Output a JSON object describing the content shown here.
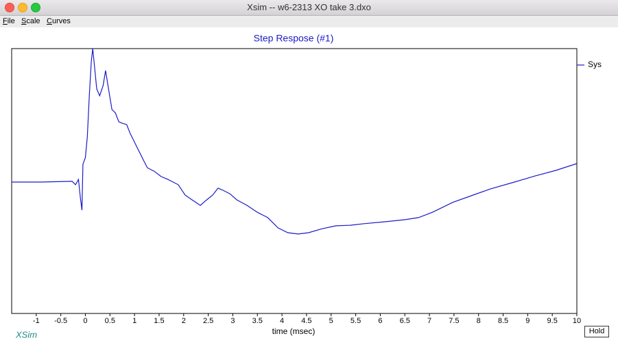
{
  "window": {
    "title": "Xsim -- w6-2313 XO take 3.dxo"
  },
  "menu": [
    "File",
    "Scale",
    "Curves"
  ],
  "logo": "XSim",
  "hold_button": "Hold",
  "chart_data": {
    "type": "line",
    "title": "Step Respose (#1)",
    "xlabel": "time (msec)",
    "xlim": [
      -1.5,
      10
    ],
    "ylim": [
      0,
      100
    ],
    "xticks": [
      -1,
      -0.5,
      0,
      0.5,
      1,
      1.5,
      2,
      2.5,
      3,
      3.5,
      4,
      4.5,
      5,
      5.5,
      6,
      6.5,
      7,
      7.5,
      8,
      8.5,
      9,
      9.5,
      10
    ],
    "legend": "top-right",
    "x": [
      -1.5,
      -0.9,
      -0.27,
      -0.2,
      -0.14,
      -0.1,
      -0.07,
      -0.05,
      0,
      0.04,
      0.08,
      0.12,
      0.15,
      0.19,
      0.23,
      0.29,
      0.36,
      0.41,
      0.47,
      0.54,
      0.61,
      0.68,
      0.75,
      0.84,
      0.91,
      0.98,
      1.05,
      1.12,
      1.19,
      1.26,
      1.4,
      1.54,
      1.68,
      1.89,
      2.03,
      2.17,
      2.34,
      2.45,
      2.59,
      2.7,
      2.8,
      2.94,
      3.08,
      3.29,
      3.5,
      3.71,
      3.92,
      4.12,
      4.33,
      4.54,
      4.82,
      5.1,
      5.39,
      5.67,
      6.08,
      6.5,
      6.78,
      7.06,
      7.47,
      7.89,
      8.24,
      8.73,
      9.15,
      9.57,
      10
    ],
    "series": [
      {
        "name": "Sys",
        "color": "#1a1ac8",
        "values": [
          49.6,
          49.6,
          49.9,
          48.6,
          50.6,
          43.4,
          39,
          56.3,
          58.9,
          66.7,
          82.2,
          95.1,
          100,
          92.5,
          84.8,
          82.2,
          86,
          91.7,
          84.8,
          77,
          75.7,
          72.4,
          71.8,
          71.3,
          68,
          65.4,
          62.8,
          60.2,
          57.6,
          55,
          53.7,
          51.7,
          50.6,
          48.6,
          44.7,
          42.9,
          40.8,
          42.6,
          44.7,
          47.3,
          46.5,
          45.2,
          42.9,
          40.8,
          38.2,
          36.2,
          32.3,
          30.5,
          30,
          30.5,
          32,
          33.1,
          33.3,
          33.9,
          34.6,
          35.4,
          36.2,
          38.2,
          41.9,
          44.7,
          47,
          49.6,
          51.9,
          54,
          56.6
        ]
      }
    ]
  }
}
